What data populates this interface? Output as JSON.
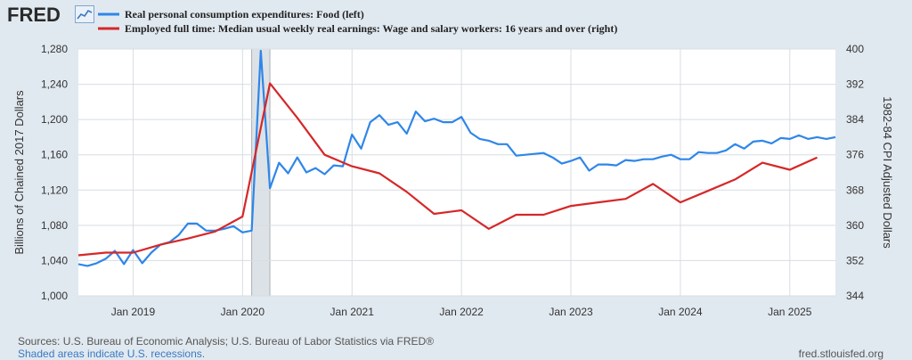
{
  "logo": {
    "text": "FRED",
    "icon": "chart-line-icon"
  },
  "chart_data": {
    "type": "line",
    "series": [
      {
        "name": "Real personal consumption expenditures: Food (left)",
        "axis": "left",
        "color": "#2f86e8",
        "points": [
          [
            "2018-07",
            1036
          ],
          [
            "2018-08",
            1034
          ],
          [
            "2018-09",
            1037
          ],
          [
            "2018-10",
            1042
          ],
          [
            "2018-11",
            1051
          ],
          [
            "2018-12",
            1036
          ],
          [
            "2019-01",
            1052
          ],
          [
            "2019-02",
            1037
          ],
          [
            "2019-03",
            1049
          ],
          [
            "2019-04",
            1058
          ],
          [
            "2019-05",
            1061
          ],
          [
            "2019-06",
            1069
          ],
          [
            "2019-07",
            1082
          ],
          [
            "2019-08",
            1082
          ],
          [
            "2019-09",
            1074
          ],
          [
            "2019-10",
            1074
          ],
          [
            "2019-11",
            1076
          ],
          [
            "2019-12",
            1079
          ],
          [
            "2020-01",
            1072
          ],
          [
            "2020-02",
            1074
          ],
          [
            "2020-03",
            1278
          ],
          [
            "2020-04",
            1122
          ],
          [
            "2020-05",
            1151
          ],
          [
            "2020-06",
            1139
          ],
          [
            "2020-07",
            1157
          ],
          [
            "2020-08",
            1140
          ],
          [
            "2020-09",
            1145
          ],
          [
            "2020-10",
            1138
          ],
          [
            "2020-11",
            1148
          ],
          [
            "2020-12",
            1147
          ],
          [
            "2021-01",
            1183
          ],
          [
            "2021-02",
            1167
          ],
          [
            "2021-03",
            1197
          ],
          [
            "2021-04",
            1205
          ],
          [
            "2021-05",
            1194
          ],
          [
            "2021-06",
            1197
          ],
          [
            "2021-07",
            1184
          ],
          [
            "2021-08",
            1209
          ],
          [
            "2021-09",
            1198
          ],
          [
            "2021-10",
            1201
          ],
          [
            "2021-11",
            1197
          ],
          [
            "2021-12",
            1197
          ],
          [
            "2022-01",
            1203
          ],
          [
            "2022-02",
            1185
          ],
          [
            "2022-03",
            1178
          ],
          [
            "2022-04",
            1176
          ],
          [
            "2022-05",
            1172
          ],
          [
            "2022-06",
            1172
          ],
          [
            "2022-07",
            1159
          ],
          [
            "2022-08",
            1160
          ],
          [
            "2022-09",
            1161
          ],
          [
            "2022-10",
            1162
          ],
          [
            "2022-11",
            1157
          ],
          [
            "2022-12",
            1150
          ],
          [
            "2023-01",
            1153
          ],
          [
            "2023-02",
            1157
          ],
          [
            "2023-03",
            1142
          ],
          [
            "2023-04",
            1149
          ],
          [
            "2023-05",
            1149
          ],
          [
            "2023-06",
            1148
          ],
          [
            "2023-07",
            1154
          ],
          [
            "2023-08",
            1153
          ],
          [
            "2023-09",
            1155
          ],
          [
            "2023-10",
            1155
          ],
          [
            "2023-11",
            1158
          ],
          [
            "2023-12",
            1160
          ],
          [
            "2024-01",
            1155
          ],
          [
            "2024-02",
            1155
          ],
          [
            "2024-03",
            1163
          ],
          [
            "2024-04",
            1162
          ],
          [
            "2024-05",
            1162
          ],
          [
            "2024-06",
            1165
          ],
          [
            "2024-07",
            1172
          ],
          [
            "2024-08",
            1167
          ],
          [
            "2024-09",
            1175
          ],
          [
            "2024-10",
            1176
          ],
          [
            "2024-11",
            1173
          ],
          [
            "2024-12",
            1179
          ],
          [
            "2025-01",
            1178
          ],
          [
            "2025-02",
            1182
          ],
          [
            "2025-03",
            1178
          ],
          [
            "2025-04",
            1180
          ],
          [
            "2025-05",
            1178
          ],
          [
            "2025-06",
            1180
          ]
        ]
      },
      {
        "name": "Employed full time: Median usual weekly real earnings: Wage and salary workers: 16 years and over (right)",
        "axis": "right",
        "color": "#d62728",
        "points": [
          [
            "2018-07",
            353.2
          ],
          [
            "2018-10",
            353.8
          ],
          [
            "2019-01",
            353.8
          ],
          [
            "2019-04",
            355.6
          ],
          [
            "2019-07",
            357.0
          ],
          [
            "2019-10",
            358.6
          ],
          [
            "2020-01",
            362.0
          ],
          [
            "2020-04",
            392.2
          ],
          [
            "2020-07",
            384.4
          ],
          [
            "2020-10",
            376.0
          ],
          [
            "2021-01",
            373.4
          ],
          [
            "2021-04",
            371.8
          ],
          [
            "2021-07",
            367.6
          ],
          [
            "2021-10",
            362.6
          ],
          [
            "2022-01",
            363.4
          ],
          [
            "2022-04",
            359.2
          ],
          [
            "2022-07",
            362.4
          ],
          [
            "2022-10",
            362.4
          ],
          [
            "2023-01",
            364.4
          ],
          [
            "2023-04",
            365.2
          ],
          [
            "2023-07",
            366.0
          ],
          [
            "2023-10",
            369.4
          ],
          [
            "2024-01",
            365.2
          ],
          [
            "2024-04",
            367.8
          ],
          [
            "2024-07",
            370.4
          ],
          [
            "2024-10",
            374.2
          ],
          [
            "2025-01",
            372.6
          ],
          [
            "2025-04",
            375.4
          ]
        ]
      }
    ],
    "recessions": [
      [
        "2020-02",
        "2020-04"
      ]
    ],
    "x_range": [
      "2018-07",
      "2025-06"
    ],
    "x_ticks": [
      {
        "date": "2019-01",
        "label": "Jan 2019"
      },
      {
        "date": "2020-01",
        "label": "Jan 2020"
      },
      {
        "date": "2021-01",
        "label": "Jan 2021"
      },
      {
        "date": "2022-01",
        "label": "Jan 2022"
      },
      {
        "date": "2023-01",
        "label": "Jan 2023"
      },
      {
        "date": "2024-01",
        "label": "Jan 2024"
      },
      {
        "date": "2025-01",
        "label": "Jan 2025"
      }
    ],
    "y_left": {
      "label": "Billions of Chained 2017 Dollars",
      "range": [
        1000,
        1280
      ],
      "ticks": [
        "1,000",
        "1,040",
        "1,080",
        "1,120",
        "1,160",
        "1,200",
        "1,240",
        "1,280"
      ],
      "tick_values": [
        1000,
        1040,
        1080,
        1120,
        1160,
        1200,
        1240,
        1280
      ]
    },
    "y_right": {
      "label": "1982-84 CPI Adjusted Dollars",
      "range": [
        344,
        400
      ],
      "ticks": [
        "344",
        "352",
        "360",
        "368",
        "376",
        "384",
        "392",
        "400"
      ],
      "tick_values": [
        344,
        352,
        360,
        368,
        376,
        384,
        392,
        400
      ]
    },
    "grid": true,
    "legend_position": "top-left"
  },
  "footer": {
    "sources": "Sources: U.S. Bureau of Economic Analysis; U.S. Bureau of Labor Statistics via FRED®",
    "shaded": "Shaded areas indicate U.S. recessions.",
    "site": "fred.stlouisfed.org"
  }
}
